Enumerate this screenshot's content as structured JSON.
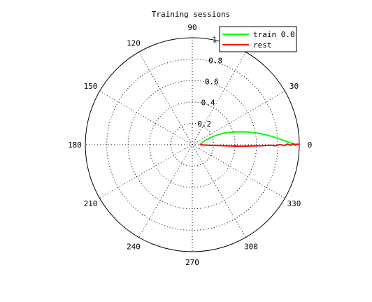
{
  "chart_data": {
    "type": "polar-line",
    "title": "Training sessions",
    "r_max": 1,
    "radial_ticks": [
      {
        "value": 0.2,
        "label": "0.2"
      },
      {
        "value": 0.4,
        "label": "0.4"
      },
      {
        "value": 0.6,
        "label": "0.6"
      },
      {
        "value": 0.8,
        "label": "0.8"
      },
      {
        "value": 1.0,
        "label": "1"
      }
    ],
    "angle_ticks": [
      {
        "deg": 0,
        "label": "0"
      },
      {
        "deg": 30,
        "label": "30"
      },
      {
        "deg": 60,
        "label": "60"
      },
      {
        "deg": 90,
        "label": "90"
      },
      {
        "deg": 120,
        "label": "120"
      },
      {
        "deg": 150,
        "label": "150"
      },
      {
        "deg": 180,
        "label": "180"
      },
      {
        "deg": 210,
        "label": "210"
      },
      {
        "deg": 240,
        "label": "240"
      },
      {
        "deg": 270,
        "label": "270"
      },
      {
        "deg": 300,
        "label": "300"
      },
      {
        "deg": 330,
        "label": "330"
      }
    ],
    "grid": true,
    "legend_position": "top-right",
    "series": [
      {
        "name": "train 0.0",
        "color": "#00ff00",
        "points": [
          {
            "x": 0.07,
            "y": 0.0
          },
          {
            "x": 0.12,
            "y": 0.04
          },
          {
            "x": 0.2,
            "y": 0.08
          },
          {
            "x": 0.3,
            "y": 0.11
          },
          {
            "x": 0.4,
            "y": 0.12
          },
          {
            "x": 0.5,
            "y": 0.12
          },
          {
            "x": 0.6,
            "y": 0.11
          },
          {
            "x": 0.7,
            "y": 0.09
          },
          {
            "x": 0.8,
            "y": 0.06
          },
          {
            "x": 0.88,
            "y": 0.03
          },
          {
            "x": 0.94,
            "y": 0.01
          },
          {
            "x": 0.98,
            "y": 0.0
          }
        ]
      },
      {
        "name": "rest",
        "color": "#ff0000",
        "points": [
          {
            "x": 0.07,
            "y": 0.0
          },
          {
            "x": 0.15,
            "y": -0.005
          },
          {
            "x": 0.25,
            "y": -0.008
          },
          {
            "x": 0.35,
            "y": -0.012
          },
          {
            "x": 0.45,
            "y": -0.015
          },
          {
            "x": 0.55,
            "y": -0.012
          },
          {
            "x": 0.65,
            "y": -0.01
          },
          {
            "x": 0.72,
            "y": -0.005
          },
          {
            "x": 0.78,
            "y": -0.01
          },
          {
            "x": 0.82,
            "y": 0.002
          },
          {
            "x": 0.86,
            "y": -0.008
          },
          {
            "x": 0.89,
            "y": 0.006
          },
          {
            "x": 0.92,
            "y": -0.006
          },
          {
            "x": 0.94,
            "y": 0.008
          },
          {
            "x": 0.96,
            "y": -0.004
          },
          {
            "x": 0.98,
            "y": 0.006
          },
          {
            "x": 1.0,
            "y": 0.0
          }
        ]
      }
    ]
  }
}
